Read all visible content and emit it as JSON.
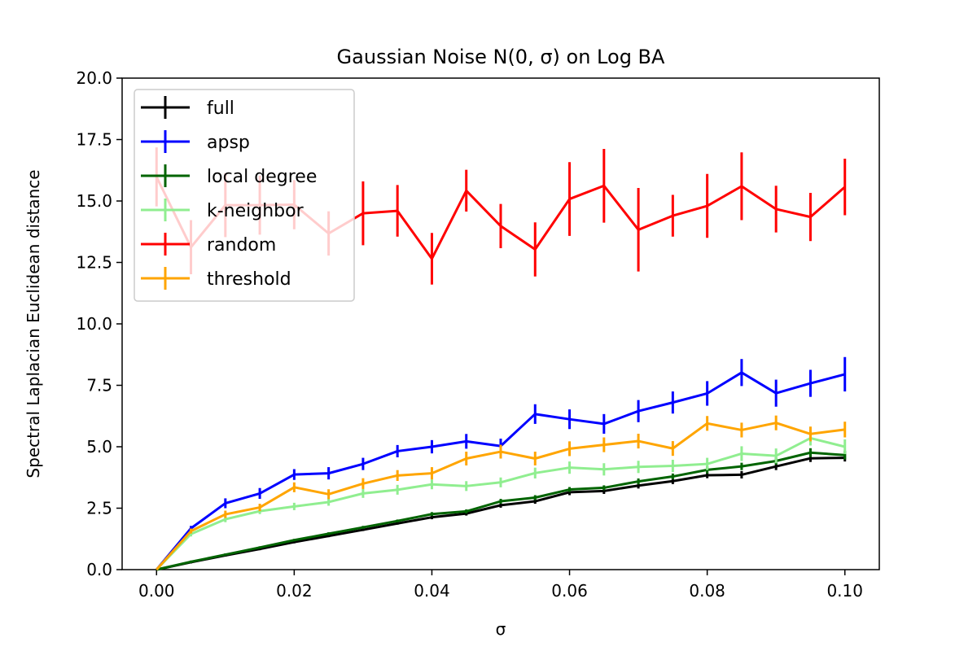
{
  "chart_data": {
    "type": "line",
    "title": "Gaussian Noise N(0, σ) on Log BA",
    "xlabel": "σ",
    "ylabel": "Spectral Laplacian Euclidean distance",
    "xlim": [
      -0.005,
      0.105
    ],
    "ylim": [
      0,
      20
    ],
    "xticks": [
      0.0,
      0.02,
      0.04,
      0.06,
      0.08,
      0.1
    ],
    "xtick_labels": [
      "0.00",
      "0.02",
      "0.04",
      "0.06",
      "0.08",
      "0.10"
    ],
    "yticks": [
      0,
      2.5,
      5,
      7.5,
      10,
      12.5,
      15,
      17.5,
      20
    ],
    "ytick_labels": [
      "0.0",
      "2.5",
      "5.0",
      "7.5",
      "10.0",
      "12.5",
      "15.0",
      "17.5",
      "20.0"
    ],
    "grid": false,
    "legend_position": "top-left",
    "x": [
      0.0,
      0.005,
      0.01,
      0.015,
      0.02,
      0.025,
      0.03,
      0.035,
      0.04,
      0.045,
      0.05,
      0.055,
      0.06,
      0.065,
      0.07,
      0.075,
      0.08,
      0.085,
      0.09,
      0.095,
      0.1
    ],
    "series": [
      {
        "name": "full",
        "color": "#000000",
        "values": [
          0.0,
          0.3,
          0.58,
          0.84,
          1.12,
          1.37,
          1.62,
          1.88,
          2.13,
          2.28,
          2.62,
          2.78,
          3.15,
          3.2,
          3.42,
          3.6,
          3.84,
          3.86,
          4.2,
          4.53,
          4.55
        ],
        "errors": [
          0,
          0.05,
          0.05,
          0.05,
          0.05,
          0.05,
          0.05,
          0.05,
          0.08,
          0.08,
          0.1,
          0.1,
          0.12,
          0.12,
          0.12,
          0.12,
          0.12,
          0.15,
          0.15,
          0.15,
          0.15
        ]
      },
      {
        "name": "apsp",
        "color": "#0000ff",
        "values": [
          0.0,
          1.68,
          2.7,
          3.1,
          3.87,
          3.92,
          4.3,
          4.82,
          5.0,
          5.22,
          5.03,
          6.33,
          6.12,
          5.93,
          6.45,
          6.8,
          7.17,
          8.02,
          7.18,
          7.58,
          7.95
        ],
        "errors": [
          0,
          0.1,
          0.2,
          0.22,
          0.22,
          0.25,
          0.25,
          0.25,
          0.27,
          0.3,
          0.3,
          0.4,
          0.4,
          0.4,
          0.45,
          0.45,
          0.5,
          0.55,
          0.55,
          0.55,
          0.7
        ]
      },
      {
        "name": "local degree",
        "color": "#006400",
        "values": [
          0.0,
          0.32,
          0.61,
          0.9,
          1.2,
          1.46,
          1.72,
          1.98,
          2.26,
          2.37,
          2.78,
          2.93,
          3.26,
          3.33,
          3.59,
          3.79,
          4.06,
          4.2,
          4.42,
          4.76,
          4.66
        ],
        "errors": [
          0,
          0.05,
          0.05,
          0.05,
          0.05,
          0.06,
          0.06,
          0.06,
          0.08,
          0.08,
          0.1,
          0.1,
          0.1,
          0.1,
          0.12,
          0.12,
          0.15,
          0.15,
          0.15,
          0.18,
          0.18
        ]
      },
      {
        "name": "k-neighbor",
        "color": "#90ee90",
        "values": [
          0.0,
          1.45,
          2.05,
          2.38,
          2.57,
          2.75,
          3.1,
          3.25,
          3.47,
          3.4,
          3.55,
          3.93,
          4.15,
          4.08,
          4.18,
          4.22,
          4.3,
          4.72,
          4.63,
          5.35,
          5.0
        ],
        "errors": [
          0,
          0.1,
          0.12,
          0.12,
          0.15,
          0.15,
          0.18,
          0.2,
          0.2,
          0.2,
          0.2,
          0.22,
          0.25,
          0.25,
          0.25,
          0.25,
          0.25,
          0.3,
          0.3,
          0.3,
          0.3
        ]
      },
      {
        "name": "random",
        "color": "#ff0000",
        "values": [
          15.98,
          13.12,
          14.83,
          14.83,
          14.85,
          13.68,
          14.5,
          14.6,
          12.65,
          15.42,
          13.98,
          13.03,
          15.08,
          15.62,
          13.83,
          14.4,
          14.8,
          15.6,
          14.67,
          14.35,
          15.57
        ],
        "errors": [
          1.2,
          1.1,
          1.3,
          1.2,
          1.0,
          0.9,
          1.3,
          1.05,
          1.05,
          0.85,
          0.9,
          1.1,
          1.5,
          1.5,
          1.7,
          0.85,
          1.3,
          1.38,
          0.95,
          0.98,
          1.15
        ]
      },
      {
        "name": "threshold",
        "color": "#ffa500",
        "values": [
          0.0,
          1.57,
          2.25,
          2.53,
          3.35,
          3.07,
          3.5,
          3.83,
          3.92,
          4.52,
          4.8,
          4.52,
          4.92,
          5.08,
          5.23,
          4.93,
          5.95,
          5.68,
          5.97,
          5.52,
          5.7
        ],
        "errors": [
          0,
          0.1,
          0.15,
          0.15,
          0.2,
          0.2,
          0.22,
          0.22,
          0.25,
          0.28,
          0.28,
          0.28,
          0.3,
          0.3,
          0.3,
          0.3,
          0.3,
          0.3,
          0.3,
          0.3,
          0.32
        ]
      }
    ]
  }
}
